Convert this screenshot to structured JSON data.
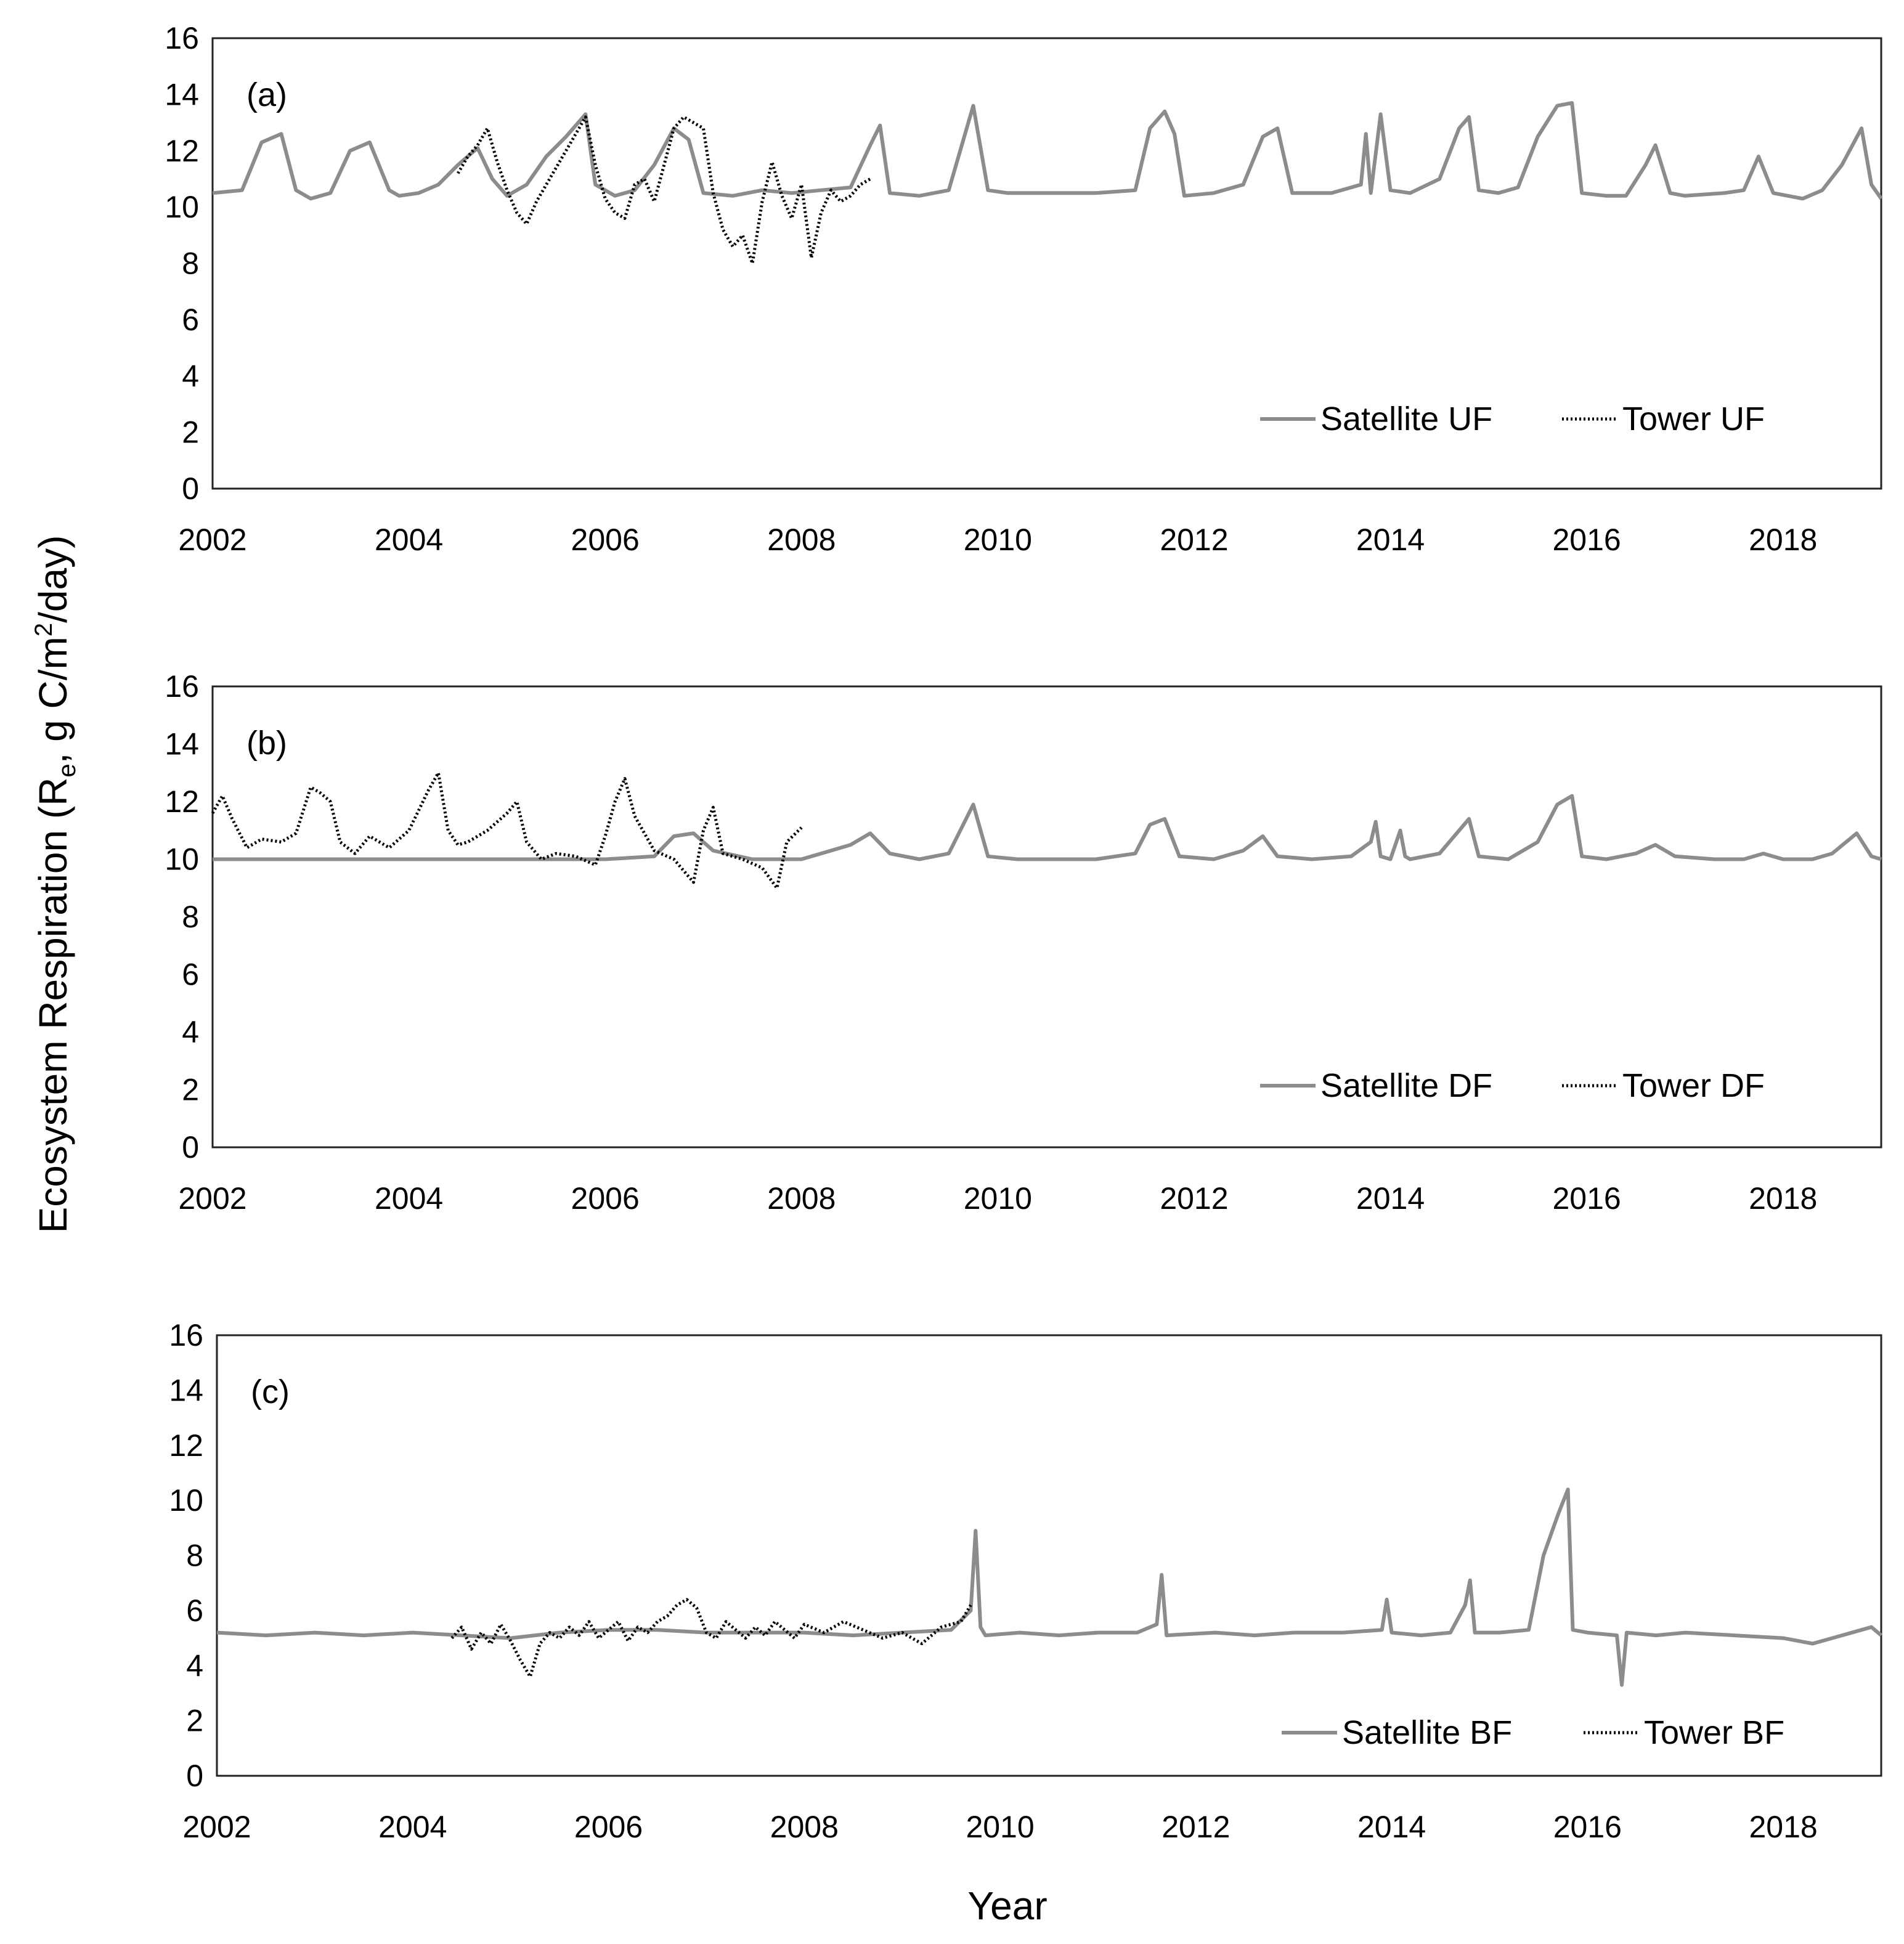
{
  "figure": {
    "ylabel_main": "Ecosystem Respiration (R",
    "ylabel_sub": "e",
    "ylabel_mid": ", g C/m",
    "ylabel_sup": "2",
    "ylabel_end": "/day)",
    "xlabel": "Year"
  },
  "chart_data": [
    {
      "type": "line",
      "panel_label": "(a)",
      "title": "",
      "xlabel": "Year",
      "ylabel": "Ecosystem Respiration (Re, g C/m2/day)",
      "xlim": [
        2002,
        2019
      ],
      "ylim": [
        0,
        16
      ],
      "x_ticks": [
        "2002",
        "2004",
        "2006",
        "2008",
        "2010",
        "2012",
        "2014",
        "2016",
        "2018"
      ],
      "y_ticks": [
        "0",
        "2",
        "4",
        "6",
        "8",
        "10",
        "12",
        "14",
        "16"
      ],
      "grid": false,
      "legend_position": "bottom-right",
      "colors": {
        "satellite": "#8c8c8c",
        "tower": "#000000"
      },
      "series": [
        {
          "name": "Satellite UF",
          "style": "solid",
          "x": [
            2002.0,
            2002.3,
            2002.5,
            2002.7,
            2002.85,
            2003.0,
            2003.2,
            2003.4,
            2003.6,
            2003.8,
            2003.9,
            2004.1,
            2004.3,
            2004.5,
            2004.7,
            2004.85,
            2005.0,
            2005.2,
            2005.4,
            2005.6,
            2005.8,
            2005.9,
            2006.1,
            2006.3,
            2006.5,
            2006.7,
            2006.85,
            2007.0,
            2007.3,
            2007.6,
            2007.9,
            2008.2,
            2008.5,
            2008.7,
            2008.8,
            2008.9,
            2009.2,
            2009.5,
            2009.75,
            2009.9,
            2010.1,
            2010.5,
            2011.0,
            2011.4,
            2011.55,
            2011.7,
            2011.8,
            2011.9,
            2012.2,
            2012.5,
            2012.7,
            2012.85,
            2013.0,
            2013.4,
            2013.7,
            2013.75,
            2013.8,
            2013.9,
            2014.0,
            2014.2,
            2014.5,
            2014.7,
            2014.8,
            2014.9,
            2015.1,
            2015.3,
            2015.5,
            2015.7,
            2015.85,
            2015.95,
            2016.2,
            2016.4,
            2016.6,
            2016.7,
            2016.85,
            2017.0,
            2017.4,
            2017.6,
            2017.75,
            2017.9,
            2018.2,
            2018.4,
            2018.6,
            2018.8,
            2018.9,
            2019.0
          ],
          "values": [
            10.5,
            10.6,
            12.3,
            12.6,
            10.6,
            10.3,
            10.5,
            12.0,
            12.3,
            10.6,
            10.4,
            10.5,
            10.8,
            11.5,
            12.1,
            11.0,
            10.4,
            10.8,
            11.8,
            12.5,
            13.3,
            10.8,
            10.4,
            10.6,
            11.5,
            12.8,
            12.4,
            10.5,
            10.4,
            10.6,
            10.5,
            10.6,
            10.7,
            12.2,
            12.9,
            10.5,
            10.4,
            10.6,
            13.6,
            10.6,
            10.5,
            10.5,
            10.5,
            10.6,
            12.8,
            13.4,
            12.6,
            10.4,
            10.5,
            10.8,
            12.5,
            12.8,
            10.5,
            10.5,
            10.8,
            12.6,
            10.5,
            13.3,
            10.6,
            10.5,
            11.0,
            12.8,
            13.2,
            10.6,
            10.5,
            10.7,
            12.5,
            13.6,
            13.7,
            10.5,
            10.4,
            10.4,
            11.5,
            12.2,
            10.5,
            10.4,
            10.5,
            10.6,
            11.8,
            10.5,
            10.3,
            10.6,
            11.5,
            12.8,
            10.8,
            10.3
          ]
        },
        {
          "name": "Tower UF",
          "style": "dotted",
          "x": [
            2004.5,
            2004.6,
            2004.7,
            2004.8,
            2004.9,
            2005.0,
            2005.1,
            2005.2,
            2005.3,
            2005.4,
            2005.5,
            2005.6,
            2005.7,
            2005.8,
            2005.9,
            2006.0,
            2006.1,
            2006.2,
            2006.3,
            2006.4,
            2006.5,
            2006.6,
            2006.7,
            2006.8,
            2006.9,
            2007.0,
            2007.1,
            2007.2,
            2007.3,
            2007.4,
            2007.5,
            2007.6,
            2007.7,
            2007.8,
            2007.9,
            2008.0,
            2008.1,
            2008.2,
            2008.3,
            2008.4,
            2008.5,
            2008.6,
            2008.7
          ],
          "values": [
            11.2,
            11.8,
            12.2,
            12.8,
            11.6,
            10.6,
            9.8,
            9.4,
            10.2,
            10.8,
            11.4,
            12.0,
            12.6,
            13.2,
            11.5,
            10.3,
            9.8,
            9.6,
            10.8,
            11.0,
            10.2,
            11.5,
            12.8,
            13.2,
            13.0,
            12.8,
            10.5,
            9.2,
            8.6,
            9.0,
            8.0,
            10.2,
            11.6,
            10.4,
            9.6,
            10.8,
            8.2,
            9.8,
            10.6,
            10.2,
            10.4,
            10.8,
            11.0
          ]
        }
      ]
    },
    {
      "type": "line",
      "panel_label": "(b)",
      "title": "",
      "xlabel": "Year",
      "ylabel": "Ecosystem Respiration (Re, g C/m2/day)",
      "xlim": [
        2002,
        2019
      ],
      "ylim": [
        0,
        16
      ],
      "x_ticks": [
        "2002",
        "2004",
        "2006",
        "2008",
        "2010",
        "2012",
        "2014",
        "2016",
        "2018"
      ],
      "y_ticks": [
        "0",
        "2",
        "4",
        "6",
        "8",
        "10",
        "12",
        "14",
        "16"
      ],
      "grid": false,
      "legend_position": "bottom-right",
      "colors": {
        "satellite": "#8c8c8c",
        "tower": "#000000"
      },
      "series": [
        {
          "name": "Satellite DF",
          "style": "solid",
          "x": [
            2002.0,
            2002.5,
            2003.0,
            2003.5,
            2004.0,
            2004.5,
            2005.0,
            2005.5,
            2006.0,
            2006.5,
            2006.7,
            2006.9,
            2007.1,
            2007.5,
            2008.0,
            2008.3,
            2008.5,
            2008.7,
            2008.9,
            2009.2,
            2009.5,
            2009.75,
            2009.9,
            2010.2,
            2010.6,
            2011.0,
            2011.4,
            2011.55,
            2011.7,
            2011.85,
            2012.2,
            2012.5,
            2012.7,
            2012.85,
            2013.2,
            2013.6,
            2013.8,
            2013.85,
            2013.9,
            2014.0,
            2014.1,
            2014.15,
            2014.2,
            2014.5,
            2014.7,
            2014.8,
            2014.9,
            2015.2,
            2015.5,
            2015.7,
            2015.85,
            2015.95,
            2016.2,
            2016.5,
            2016.7,
            2016.9,
            2017.3,
            2017.6,
            2017.8,
            2018.0,
            2018.3,
            2018.5,
            2018.75,
            2018.9,
            2019.0
          ],
          "values": [
            10.0,
            10.0,
            10.0,
            10.0,
            10.0,
            10.0,
            10.0,
            10.0,
            10.0,
            10.1,
            10.8,
            10.9,
            10.3,
            10.0,
            10.0,
            10.3,
            10.5,
            10.9,
            10.2,
            10.0,
            10.2,
            11.9,
            10.1,
            10.0,
            10.0,
            10.0,
            10.2,
            11.2,
            11.4,
            10.1,
            10.0,
            10.3,
            10.8,
            10.1,
            10.0,
            10.1,
            10.6,
            11.3,
            10.1,
            10.0,
            11.0,
            10.1,
            10.0,
            10.2,
            11.0,
            11.4,
            10.1,
            10.0,
            10.6,
            11.9,
            12.2,
            10.1,
            10.0,
            10.2,
            10.5,
            10.1,
            10.0,
            10.0,
            10.2,
            10.0,
            10.0,
            10.2,
            10.9,
            10.1,
            10.0
          ]
        },
        {
          "name": "Tower DF",
          "style": "dotted",
          "x": [
            2002.0,
            2002.1,
            2002.2,
            2002.35,
            2002.5,
            2002.7,
            2002.85,
            2003.0,
            2003.1,
            2003.2,
            2003.3,
            2003.45,
            2003.6,
            2003.8,
            2004.0,
            2004.2,
            2004.3,
            2004.4,
            2004.5,
            2004.6,
            2004.8,
            2005.0,
            2005.1,
            2005.2,
            2005.35,
            2005.5,
            2005.7,
            2005.9,
            2006.0,
            2006.1,
            2006.2,
            2006.3,
            2006.5,
            2006.7,
            2006.9,
            2007.0,
            2007.1,
            2007.2,
            2007.4,
            2007.6,
            2007.75,
            2007.85,
            2008.0
          ],
          "values": [
            11.6,
            12.2,
            11.4,
            10.4,
            10.7,
            10.6,
            10.9,
            12.5,
            12.3,
            12.0,
            10.6,
            10.2,
            10.8,
            10.4,
            11.0,
            12.4,
            13.0,
            11.0,
            10.5,
            10.6,
            11.0,
            11.6,
            12.0,
            10.6,
            10.0,
            10.2,
            10.1,
            9.8,
            10.8,
            12.0,
            12.8,
            11.5,
            10.3,
            10.0,
            9.2,
            11.0,
            11.8,
            10.2,
            10.0,
            9.7,
            9.0,
            10.6,
            11.1
          ]
        }
      ]
    },
    {
      "type": "line",
      "panel_label": "(c)",
      "title": "",
      "xlabel": "Year",
      "ylabel": "Ecosystem Respiration (Re, g C/m2/day)",
      "xlim": [
        2002,
        2019
      ],
      "ylim": [
        0,
        16
      ],
      "x_ticks": [
        "2002",
        "2004",
        "2006",
        "2008",
        "2010",
        "2012",
        "2014",
        "2016",
        "2018"
      ],
      "y_ticks": [
        "0",
        "2",
        "4",
        "6",
        "8",
        "10",
        "12",
        "14",
        "16"
      ],
      "grid": false,
      "legend_position": "bottom-right",
      "colors": {
        "satellite": "#8c8c8c",
        "tower": "#000000"
      },
      "series": [
        {
          "name": "Satellite BF",
          "style": "solid",
          "x": [
            2002.0,
            2002.5,
            2003.0,
            2003.5,
            2004.0,
            2004.5,
            2005.0,
            2005.5,
            2006.0,
            2006.5,
            2007.0,
            2007.5,
            2008.0,
            2008.5,
            2009.0,
            2009.5,
            2009.7,
            2009.75,
            2009.8,
            2009.85,
            2010.2,
            2010.6,
            2011.0,
            2011.4,
            2011.6,
            2011.65,
            2011.7,
            2012.2,
            2012.6,
            2013.0,
            2013.5,
            2013.9,
            2013.95,
            2014.0,
            2014.3,
            2014.6,
            2014.75,
            2014.8,
            2014.85,
            2015.1,
            2015.4,
            2015.55,
            2015.7,
            2015.8,
            2015.85,
            2016.0,
            2016.3,
            2016.35,
            2016.4,
            2016.7,
            2017.0,
            2017.5,
            2018.0,
            2018.3,
            2018.6,
            2018.9,
            2019.0
          ],
          "values": [
            5.2,
            5.1,
            5.2,
            5.1,
            5.2,
            5.1,
            5.0,
            5.2,
            5.3,
            5.3,
            5.2,
            5.2,
            5.2,
            5.1,
            5.2,
            5.3,
            6.0,
            8.9,
            5.4,
            5.1,
            5.2,
            5.1,
            5.2,
            5.2,
            5.5,
            7.3,
            5.1,
            5.2,
            5.1,
            5.2,
            5.2,
            5.3,
            6.4,
            5.2,
            5.1,
            5.2,
            6.2,
            7.1,
            5.2,
            5.2,
            5.3,
            8.0,
            9.5,
            10.4,
            5.3,
            5.2,
            5.1,
            3.3,
            5.2,
            5.1,
            5.2,
            5.1,
            5.0,
            4.8,
            5.1,
            5.4,
            5.1
          ]
        },
        {
          "name": "Tower BF",
          "style": "dotted",
          "x": [
            2004.4,
            2004.5,
            2004.6,
            2004.7,
            2004.8,
            2004.9,
            2005.0,
            2005.1,
            2005.2,
            2005.3,
            2005.4,
            2005.5,
            2005.6,
            2005.7,
            2005.8,
            2005.9,
            2006.0,
            2006.1,
            2006.2,
            2006.3,
            2006.4,
            2006.5,
            2006.6,
            2006.7,
            2006.8,
            2006.9,
            2007.0,
            2007.1,
            2007.2,
            2007.3,
            2007.4,
            2007.5,
            2007.6,
            2007.7,
            2007.8,
            2007.9,
            2008.0,
            2008.2,
            2008.4,
            2008.6,
            2008.8,
            2009.0,
            2009.2,
            2009.4,
            2009.6,
            2009.7
          ],
          "values": [
            5.0,
            5.4,
            4.6,
            5.2,
            4.8,
            5.5,
            4.9,
            4.2,
            3.6,
            4.8,
            5.2,
            5.0,
            5.4,
            5.1,
            5.6,
            5.0,
            5.3,
            5.6,
            4.9,
            5.4,
            5.2,
            5.6,
            5.8,
            6.2,
            6.4,
            6.1,
            5.2,
            5.0,
            5.6,
            5.3,
            5.0,
            5.4,
            5.1,
            5.6,
            5.3,
            5.0,
            5.5,
            5.2,
            5.6,
            5.3,
            5.0,
            5.2,
            4.8,
            5.4,
            5.6,
            6.2
          ]
        }
      ]
    }
  ]
}
